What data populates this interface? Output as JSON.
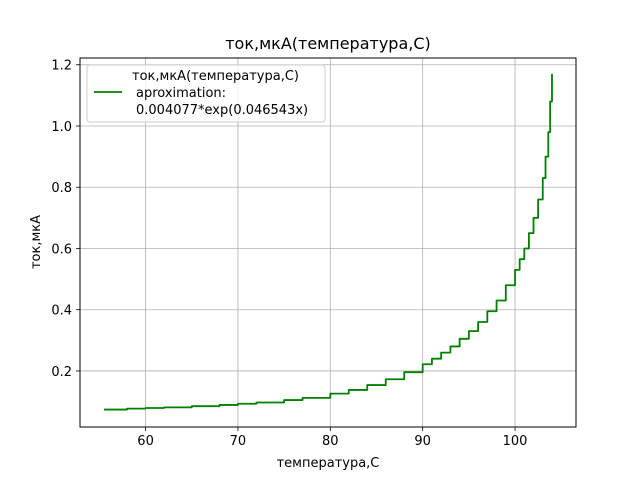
{
  "chart_data": {
    "type": "line",
    "title": "ток,мкА(температура,С)",
    "xlabel": "температура,С",
    "ylabel": "ток,мкА",
    "xlim": [
      52.9,
      106.6
    ],
    "ylim": [
      0.017,
      1.222
    ],
    "grid": true,
    "xticks": [
      60,
      70,
      80,
      90,
      100
    ],
    "yticks": [
      0.2,
      0.4,
      0.6,
      0.8,
      1.0,
      1.2
    ],
    "xtick_labels": [
      "60",
      "70",
      "80",
      "90",
      "100"
    ],
    "ytick_labels": [
      "0.2",
      "0.4",
      "0.6",
      "0.8",
      "1.0",
      "1.2"
    ],
    "legend_placement": "top-left",
    "legend_lines": [
      "ток,мкА(температура,С)",
      "aproximation:",
      "0.004077*exp(0.046543x)"
    ],
    "series": [
      {
        "name": "ток,мкА(температура,С) aproximation: 0.004077*exp(0.046543x)",
        "color": "#008000",
        "x": [
          55.5,
          58,
          60,
          62,
          65,
          68,
          70,
          72,
          75,
          77,
          80,
          82,
          84,
          86,
          88,
          90,
          91,
          92,
          93,
          94,
          95,
          96,
          97,
          98,
          99,
          100,
          100.5,
          101,
          101.5,
          102,
          102.5,
          103,
          103.3,
          103.6,
          103.8,
          104
        ],
        "y": [
          0.074,
          0.077,
          0.079,
          0.081,
          0.085,
          0.089,
          0.093,
          0.097,
          0.105,
          0.112,
          0.126,
          0.138,
          0.154,
          0.173,
          0.196,
          0.222,
          0.24,
          0.26,
          0.28,
          0.305,
          0.33,
          0.36,
          0.395,
          0.43,
          0.48,
          0.53,
          0.565,
          0.6,
          0.65,
          0.7,
          0.76,
          0.83,
          0.9,
          0.98,
          1.08,
          1.17
        ]
      }
    ]
  }
}
